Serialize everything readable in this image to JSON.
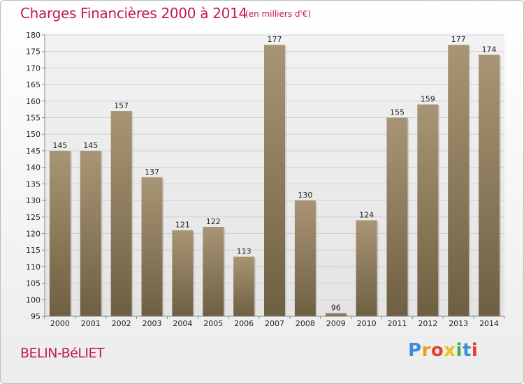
{
  "header": {
    "title": "Charges Financières 2000 à 2014",
    "subtitle": "(en milliers d'€)"
  },
  "footer": {
    "city": "BELIN-BéLIET",
    "logo": "Proxiti"
  },
  "colors": {
    "title": "#c0185a",
    "bar_top": "#a89575",
    "bar_bottom": "#6f5f42",
    "grid": "#d0d0d0"
  },
  "chart_data": {
    "type": "bar",
    "title": "Charges Financières 2000 à 2014",
    "subtitle": "(en milliers d'€)",
    "categories": [
      "2000",
      "2001",
      "2002",
      "2003",
      "2004",
      "2005",
      "2006",
      "2007",
      "2008",
      "2009",
      "2010",
      "2011",
      "2012",
      "2013",
      "2014"
    ],
    "values": [
      145,
      145,
      157,
      137,
      121,
      122,
      113,
      177,
      130,
      96,
      124,
      155,
      159,
      177,
      174
    ],
    "ylim": [
      95,
      180
    ],
    "yticks": [
      95,
      100,
      105,
      110,
      115,
      120,
      125,
      130,
      135,
      140,
      145,
      150,
      155,
      160,
      165,
      170,
      175,
      180
    ],
    "grid": true,
    "data_labels": true
  }
}
